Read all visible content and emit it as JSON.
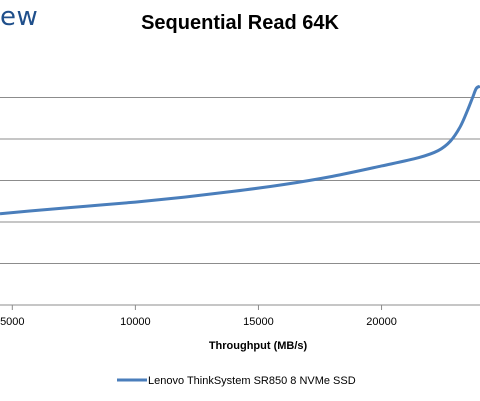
{
  "header": {
    "logo_fragment": "ew"
  },
  "chart_data": {
    "type": "line",
    "title": "Sequential Read 64K",
    "xlabel": "Throughput (MB/s)",
    "ylabel": "",
    "xlim": [
      4500,
      24000
    ],
    "x_ticks": [
      5000,
      10000,
      15000,
      20000
    ],
    "x_tick_labels": [
      "5000",
      "10000",
      "15000",
      "20000"
    ],
    "ylim": [
      0,
      6
    ],
    "y_gridlines": [
      1,
      2,
      3,
      4,
      5
    ],
    "grid": true,
    "legend_position": "bottom",
    "series": [
      {
        "name": "Lenovo ThinkSystem SR850 8 NVMe SSD",
        "color": "#4a7ebb",
        "x": [
          4500,
          6000,
          8000,
          10000,
          12000,
          14000,
          16000,
          18000,
          20000,
          21500,
          22300,
          22800,
          23200,
          23500,
          23700,
          23850,
          24000
        ],
        "y": [
          2.2,
          2.28,
          2.38,
          2.48,
          2.6,
          2.74,
          2.9,
          3.1,
          3.35,
          3.55,
          3.72,
          3.95,
          4.3,
          4.7,
          5.0,
          5.22,
          5.27
        ]
      }
    ]
  }
}
